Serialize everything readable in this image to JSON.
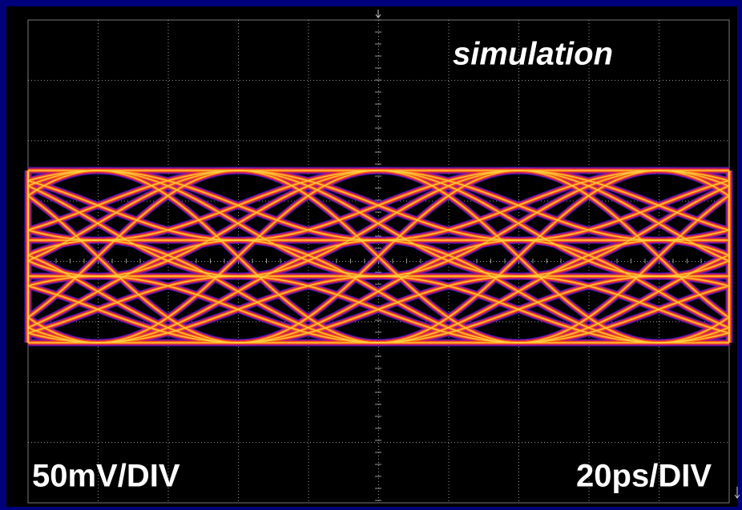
{
  "screen": {
    "label": "simulation",
    "vertical_scale": "50mV/DIV",
    "horizontal_scale": "20ps/DIV"
  }
}
